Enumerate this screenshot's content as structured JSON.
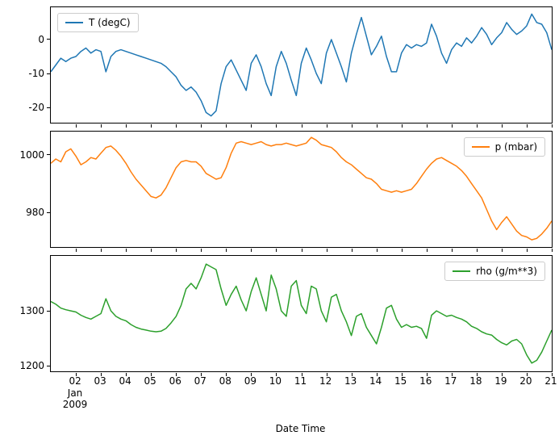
{
  "chart_data": {
    "type": "line",
    "xlabel": "Date Time",
    "xlim": [
      1,
      21
    ],
    "xticks": [
      2,
      3,
      4,
      5,
      6,
      7,
      8,
      9,
      10,
      11,
      12,
      13,
      14,
      15,
      16,
      17,
      18,
      19,
      20,
      21
    ],
    "xtick_labels": [
      "02",
      "03",
      "04",
      "05",
      "06",
      "07",
      "08",
      "09",
      "10",
      "11",
      "12",
      "13",
      "14",
      "15",
      "16",
      "17",
      "18",
      "19",
      "20",
      "21"
    ],
    "x_offset_lines": [
      "Jan",
      "2009"
    ],
    "grid": false,
    "x": [
      1,
      1.2,
      1.4,
      1.6,
      1.8,
      2,
      2.2,
      2.4,
      2.6,
      2.8,
      3,
      3.2,
      3.4,
      3.6,
      3.8,
      4,
      4.2,
      4.4,
      4.6,
      4.8,
      5,
      5.2,
      5.4,
      5.6,
      5.8,
      6,
      6.2,
      6.4,
      6.6,
      6.8,
      7,
      7.2,
      7.4,
      7.6,
      7.8,
      8,
      8.2,
      8.4,
      8.6,
      8.8,
      9,
      9.2,
      9.4,
      9.6,
      9.8,
      10,
      10.2,
      10.4,
      10.6,
      10.8,
      11,
      11.2,
      11.4,
      11.6,
      11.8,
      12,
      12.2,
      12.4,
      12.6,
      12.8,
      13,
      13.2,
      13.4,
      13.6,
      13.8,
      14,
      14.2,
      14.4,
      14.6,
      14.8,
      15,
      15.2,
      15.4,
      15.6,
      15.8,
      16,
      16.2,
      16.4,
      16.6,
      16.8,
      17,
      17.2,
      17.4,
      17.6,
      17.8,
      18,
      18.2,
      18.4,
      18.6,
      18.8,
      19,
      19.2,
      19.4,
      19.6,
      19.8,
      20,
      20.2,
      20.4,
      20.6,
      20.8,
      21
    ],
    "subplots": [
      {
        "name": "T (degC)",
        "color": "#1f77b4",
        "legend_loc": "upper left",
        "ylim": [
          -24.5,
          9.5
        ],
        "yticks": [
          0,
          -10,
          -20
        ],
        "values": [
          -9.5,
          -7.5,
          -5.5,
          -6.5,
          -5.5,
          -5,
          -3.5,
          -2.5,
          -4,
          -3,
          -3.5,
          -9.5,
          -5,
          -3.5,
          -3,
          -3.5,
          -4,
          -4.5,
          -5,
          -5.5,
          -6,
          -6.5,
          -7,
          -8,
          -9.5,
          -11,
          -13.5,
          -15,
          -14,
          -15.5,
          -18,
          -21.5,
          -22.5,
          -21,
          -13,
          -8,
          -6,
          -9,
          -12,
          -15,
          -7,
          -4.5,
          -8,
          -13,
          -16.5,
          -8,
          -3.5,
          -7,
          -12,
          -16.5,
          -7,
          -2.5,
          -6,
          -10,
          -13,
          -4,
          0,
          -4,
          -8,
          -12.5,
          -4,
          1.5,
          6.5,
          1,
          -4.5,
          -2,
          1,
          -5,
          -9.5,
          -9.5,
          -4,
          -1.5,
          -2.5,
          -1.5,
          -2,
          -1,
          4.5,
          1,
          -4,
          -7,
          -3,
          -1,
          -2,
          0.5,
          -1,
          1,
          3.5,
          1.5,
          -1.5,
          0.5,
          2,
          5,
          3,
          1.5,
          2.5,
          4,
          7.5,
          5,
          4.5,
          2,
          -3
        ]
      },
      {
        "name": "p (mbar)",
        "color": "#ff7f0e",
        "legend_loc": "upper right",
        "ylim": [
          968,
          1008
        ],
        "yticks": [
          1000,
          980
        ],
        "values": [
          997,
          998.5,
          997.5,
          1001,
          1002,
          999.5,
          996.5,
          997.5,
          999,
          998.5,
          1000.5,
          1002.5,
          1003,
          1001.5,
          999.5,
          997,
          994,
          991.5,
          989.5,
          987.5,
          985.5,
          985,
          986,
          988.5,
          992,
          995.5,
          997.5,
          998,
          997.5,
          997.5,
          996,
          993.5,
          992.5,
          991.5,
          992,
          995.5,
          1000.5,
          1004,
          1004.5,
          1004,
          1003.5,
          1004,
          1004.5,
          1003.5,
          1003,
          1003.5,
          1003.5,
          1004,
          1003.5,
          1003,
          1003.5,
          1004,
          1006,
          1005,
          1003.5,
          1003,
          1002.5,
          1001,
          999,
          997.5,
          996.5,
          995,
          993.5,
          992,
          991.5,
          990,
          988,
          987.5,
          987,
          987.5,
          987,
          987.5,
          988,
          990,
          992.5,
          995,
          997,
          998.5,
          999,
          998,
          997,
          996,
          994.5,
          992.5,
          990,
          987.5,
          985,
          981,
          977,
          974,
          976.5,
          978.5,
          976,
          973.5,
          972,
          971.5,
          970.5,
          971,
          972.5,
          974.5,
          977
        ]
      },
      {
        "name": "rho (g/m**3)",
        "color": "#2ca02c",
        "legend_loc": "upper right",
        "ylim": [
          1190,
          1400
        ],
        "yticks": [
          1300,
          1200
        ],
        "values": [
          1317,
          1312,
          1305,
          1302,
          1300,
          1298,
          1292,
          1288,
          1285,
          1290,
          1295,
          1322,
          1300,
          1290,
          1285,
          1282,
          1275,
          1270,
          1267,
          1265,
          1263,
          1262,
          1263,
          1268,
          1278,
          1290,
          1310,
          1340,
          1350,
          1340,
          1360,
          1385,
          1380,
          1375,
          1340,
          1310,
          1330,
          1345,
          1320,
          1300,
          1335,
          1360,
          1330,
          1300,
          1365,
          1340,
          1300,
          1290,
          1345,
          1355,
          1310,
          1295,
          1345,
          1340,
          1300,
          1280,
          1325,
          1330,
          1300,
          1280,
          1255,
          1290,
          1295,
          1270,
          1255,
          1240,
          1270,
          1305,
          1310,
          1285,
          1270,
          1275,
          1270,
          1272,
          1268,
          1250,
          1292,
          1300,
          1295,
          1290,
          1292,
          1288,
          1285,
          1280,
          1272,
          1268,
          1262,
          1258,
          1256,
          1248,
          1242,
          1238,
          1245,
          1248,
          1240,
          1220,
          1205,
          1210,
          1225,
          1245,
          1265
        ]
      }
    ]
  }
}
